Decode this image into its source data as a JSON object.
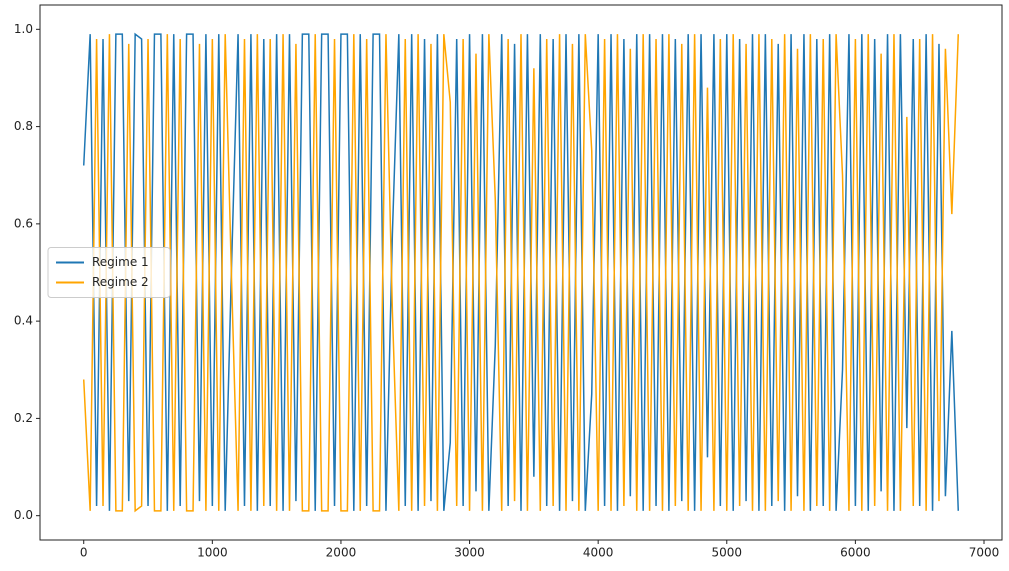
{
  "chart_data": {
    "type": "line",
    "x": [
      0,
      50,
      100,
      150,
      200,
      250,
      300,
      350,
      400,
      450,
      500,
      550,
      600,
      650,
      700,
      750,
      800,
      850,
      900,
      950,
      1000,
      1050,
      1100,
      1150,
      1200,
      1250,
      1300,
      1350,
      1400,
      1450,
      1500,
      1550,
      1600,
      1650,
      1700,
      1750,
      1800,
      1850,
      1900,
      1950,
      2000,
      2050,
      2100,
      2150,
      2200,
      2250,
      2300,
      2350,
      2400,
      2450,
      2500,
      2550,
      2600,
      2650,
      2700,
      2750,
      2800,
      2850,
      2900,
      2950,
      3000,
      3050,
      3100,
      3150,
      3200,
      3250,
      3300,
      3350,
      3400,
      3450,
      3500,
      3550,
      3600,
      3650,
      3700,
      3750,
      3800,
      3850,
      3900,
      3950,
      4000,
      4050,
      4100,
      4150,
      4200,
      4250,
      4300,
      4350,
      4400,
      4450,
      4500,
      4550,
      4600,
      4650,
      4700,
      4750,
      4800,
      4850,
      4900,
      4950,
      5000,
      5050,
      5100,
      5150,
      5200,
      5250,
      5300,
      5350,
      5400,
      5450,
      5500,
      5550,
      5600,
      5650,
      5700,
      5750,
      5800,
      5850,
      5900,
      5950,
      6000,
      6050,
      6100,
      6150,
      6200,
      6250,
      6300,
      6350,
      6400,
      6450,
      6500,
      6550,
      6600,
      6650,
      6700,
      6750,
      6800
    ],
    "series": [
      {
        "name": "Regime 1",
        "color": "#1f77b4",
        "values": [
          0.72,
          0.99,
          0.02,
          0.98,
          0.01,
          0.99,
          0.99,
          0.03,
          0.99,
          0.98,
          0.02,
          0.99,
          0.99,
          0.01,
          0.99,
          0.02,
          0.99,
          0.99,
          0.03,
          0.99,
          0.02,
          0.99,
          0.01,
          0.52,
          0.99,
          0.02,
          0.99,
          0.01,
          0.98,
          0.02,
          0.99,
          0.01,
          0.99,
          0.03,
          0.99,
          0.99,
          0.01,
          0.99,
          0.99,
          0.02,
          0.99,
          0.99,
          0.01,
          0.99,
          0.02,
          0.99,
          0.99,
          0.01,
          0.58,
          0.99,
          0.02,
          0.99,
          0.01,
          0.98,
          0.03,
          0.99,
          0.01,
          0.15,
          0.98,
          0.02,
          0.99,
          0.05,
          0.99,
          0.01,
          0.35,
          0.99,
          0.02,
          0.97,
          0.01,
          0.99,
          0.08,
          0.99,
          0.02,
          0.98,
          0.01,
          0.99,
          0.03,
          0.99,
          0.01,
          0.25,
          0.99,
          0.02,
          0.99,
          0.01,
          0.98,
          0.04,
          0.99,
          0.01,
          0.99,
          0.02,
          0.99,
          0.01,
          0.98,
          0.03,
          0.99,
          0.01,
          0.99,
          0.12,
          0.99,
          0.02,
          0.99,
          0.01,
          0.98,
          0.03,
          0.99,
          0.01,
          0.99,
          0.02,
          0.97,
          0.01,
          0.99,
          0.04,
          0.99,
          0.01,
          0.98,
          0.02,
          0.99,
          0.01,
          0.3,
          0.99,
          0.02,
          0.99,
          0.01,
          0.98,
          0.05,
          0.99,
          0.01,
          0.99,
          0.18,
          0.98,
          0.02,
          0.99,
          0.01,
          0.97,
          0.04,
          0.38,
          0.01
        ]
      },
      {
        "name": "Regime 2",
        "color": "#ffa500",
        "values": [
          0.28,
          0.01,
          0.98,
          0.02,
          0.99,
          0.01,
          0.01,
          0.97,
          0.01,
          0.02,
          0.98,
          0.01,
          0.01,
          0.99,
          0.01,
          0.98,
          0.01,
          0.01,
          0.97,
          0.01,
          0.98,
          0.01,
          0.99,
          0.48,
          0.01,
          0.98,
          0.01,
          0.99,
          0.02,
          0.98,
          0.01,
          0.99,
          0.01,
          0.97,
          0.01,
          0.01,
          0.99,
          0.01,
          0.01,
          0.98,
          0.01,
          0.01,
          0.99,
          0.01,
          0.98,
          0.01,
          0.01,
          0.99,
          0.42,
          0.01,
          0.98,
          0.01,
          0.99,
          0.02,
          0.97,
          0.01,
          0.99,
          0.85,
          0.02,
          0.98,
          0.01,
          0.95,
          0.01,
          0.99,
          0.65,
          0.01,
          0.98,
          0.03,
          0.99,
          0.01,
          0.92,
          0.01,
          0.98,
          0.02,
          0.99,
          0.01,
          0.97,
          0.01,
          0.99,
          0.75,
          0.01,
          0.98,
          0.01,
          0.99,
          0.02,
          0.96,
          0.01,
          0.99,
          0.01,
          0.98,
          0.01,
          0.99,
          0.02,
          0.97,
          0.01,
          0.99,
          0.01,
          0.88,
          0.01,
          0.98,
          0.01,
          0.99,
          0.02,
          0.97,
          0.01,
          0.99,
          0.01,
          0.98,
          0.03,
          0.99,
          0.01,
          0.96,
          0.01,
          0.99,
          0.02,
          0.98,
          0.01,
          0.99,
          0.7,
          0.01,
          0.98,
          0.01,
          0.99,
          0.02,
          0.95,
          0.01,
          0.99,
          0.01,
          0.82,
          0.02,
          0.98,
          0.01,
          0.99,
          0.03,
          0.96,
          0.62,
          0.99
        ]
      }
    ],
    "xlim": [
      -340,
      7140
    ],
    "ylim": [
      -0.05,
      1.05
    ],
    "xticks": [
      0,
      1000,
      2000,
      3000,
      4000,
      5000,
      6000,
      7000
    ],
    "yticks": [
      {
        "value": 0,
        "label": "0.0"
      },
      0.2,
      0.4,
      0.6,
      0.8,
      {
        "value": 1,
        "label": "1.0"
      }
    ],
    "legend": "center left"
  }
}
